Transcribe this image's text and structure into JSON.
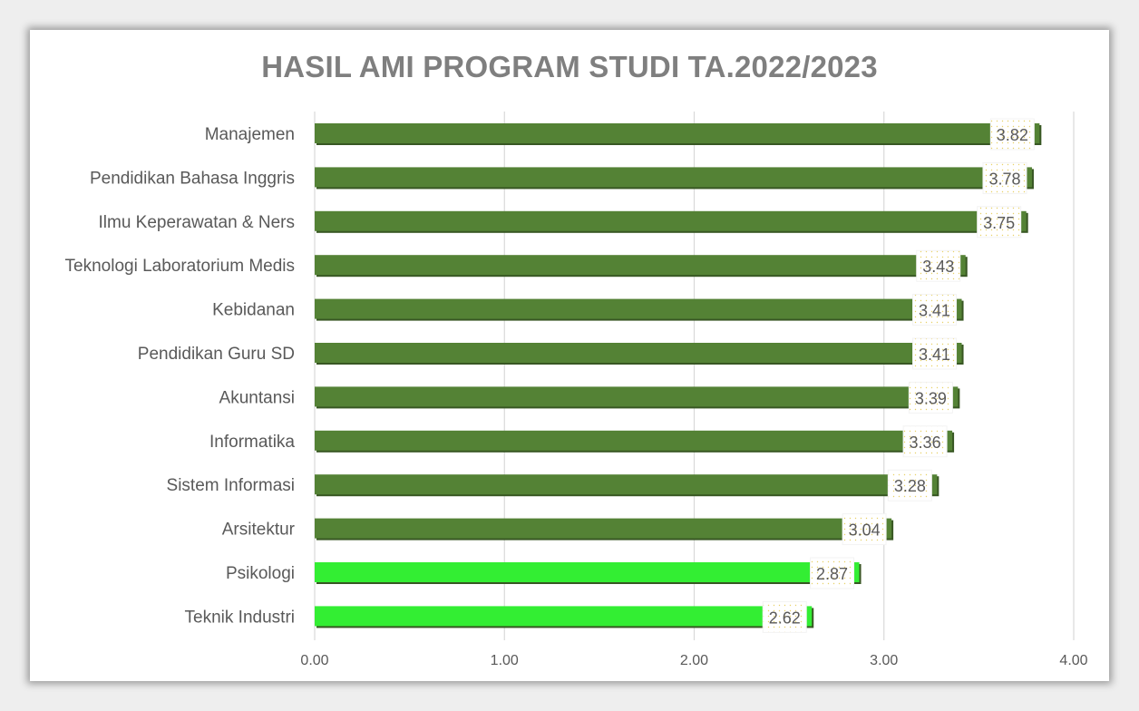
{
  "chart_data": {
    "type": "bar",
    "orientation": "horizontal",
    "title": "HASIL AMI PROGRAM STUDI TA.2022/2023",
    "categories": [
      "Manajemen",
      "Pendidikan Bahasa Inggris",
      "Ilmu Keperawatan & Ners",
      "Teknologi Laboratorium Medis",
      "Kebidanan",
      "Pendidikan Guru SD",
      "Akuntansi",
      "Informatika",
      "Sistem Informasi",
      "Arsitektur",
      "Psikologi",
      "Teknik Industri"
    ],
    "values": [
      3.82,
      3.78,
      3.75,
      3.43,
      3.41,
      3.41,
      3.39,
      3.36,
      3.28,
      3.04,
      2.87,
      2.62
    ],
    "value_labels": [
      "3.82",
      "3.78",
      "3.75",
      "3.43",
      "3.41",
      "3.41",
      "3.39",
      "3.36",
      "3.28",
      "3.04",
      "2.87",
      "2.62"
    ],
    "bar_colors": [
      "#548235",
      "#548235",
      "#548235",
      "#548235",
      "#548235",
      "#548235",
      "#548235",
      "#548235",
      "#548235",
      "#548235",
      "#33ee33",
      "#33ee33"
    ],
    "xlim": [
      0,
      4
    ],
    "xticks": [
      0,
      1,
      2,
      3,
      4
    ],
    "xtick_labels": [
      "0.00",
      "1.00",
      "2.00",
      "3.00",
      "4.00"
    ],
    "xlabel": "",
    "ylabel": "",
    "grid": true,
    "legend": "none"
  }
}
